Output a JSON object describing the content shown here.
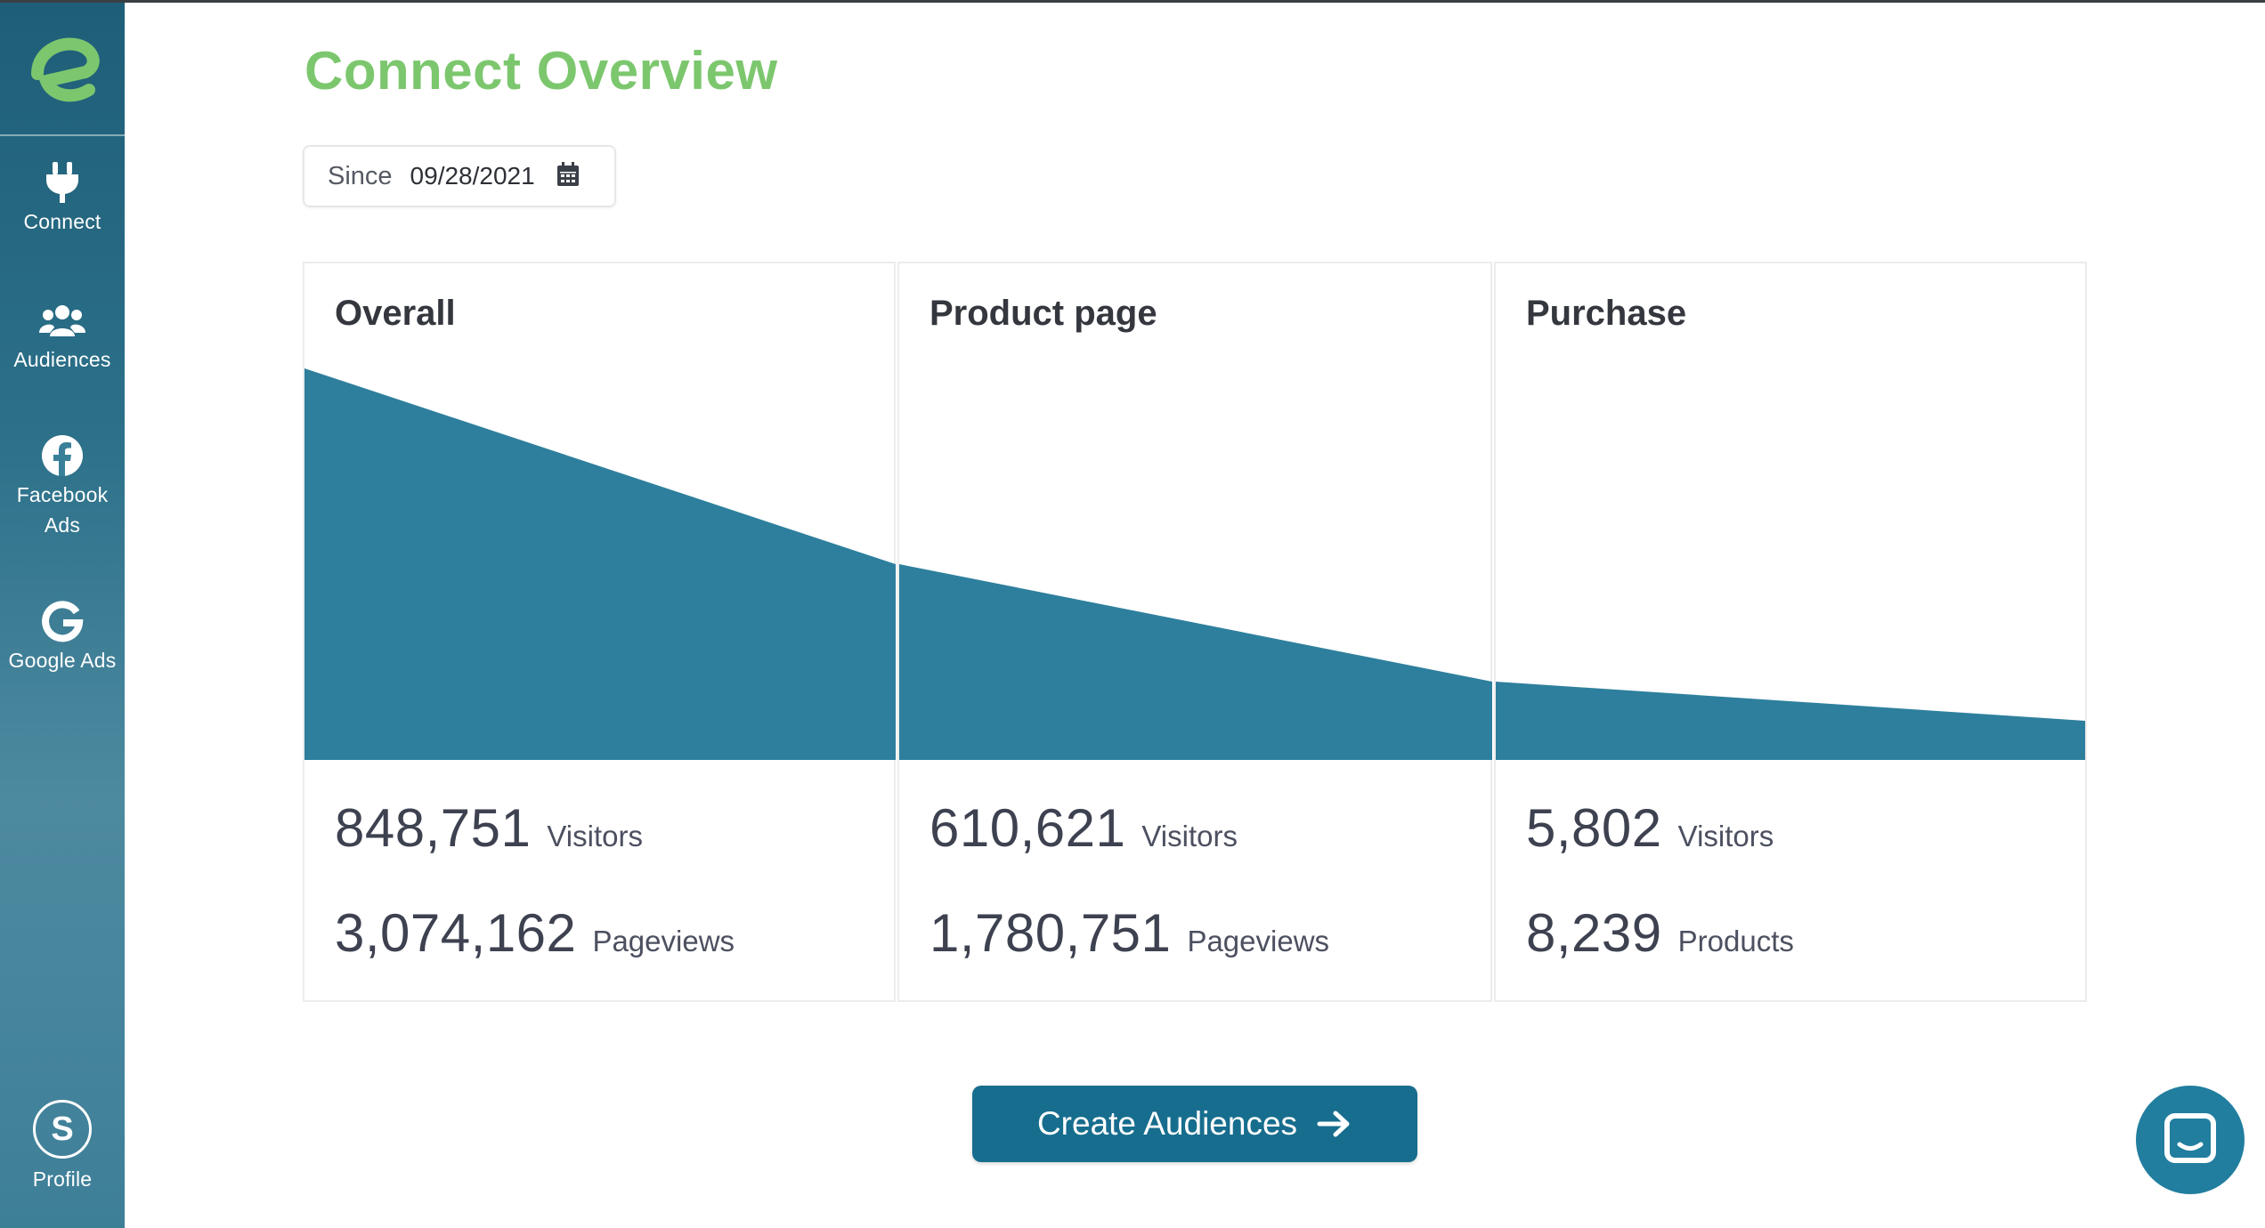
{
  "sidebar": {
    "logo_letter": "e",
    "items": [
      {
        "label": "Connect",
        "icon": "plug-icon"
      },
      {
        "label": "Audiences",
        "icon": "users-icon"
      },
      {
        "label": "Facebook Ads",
        "icon": "facebook-icon"
      },
      {
        "label": "Google Ads",
        "icon": "google-icon"
      }
    ],
    "profile": {
      "initial": "S",
      "label": "Profile"
    }
  },
  "header": {
    "title": "Connect Overview"
  },
  "filter": {
    "since_label": "Since",
    "since_value": "09/28/2021"
  },
  "cards": [
    {
      "title": "Overall",
      "stats": [
        {
          "value": "848,751",
          "unit": "Visitors"
        },
        {
          "value": "3,074,162",
          "unit": "Pageviews"
        }
      ]
    },
    {
      "title": "Product page",
      "stats": [
        {
          "value": "610,621",
          "unit": "Visitors"
        },
        {
          "value": "1,780,751",
          "unit": "Pageviews"
        }
      ]
    },
    {
      "title": "Purchase",
      "stats": [
        {
          "value": "5,802",
          "unit": "Visitors"
        },
        {
          "value": "8,239",
          "unit": "Products"
        }
      ]
    }
  ],
  "funnel_levels": {
    "overall_start": 1.0,
    "overall_end": 0.5,
    "product_end": 0.2,
    "purchase_end": 0.1
  },
  "cta": {
    "label": "Create Audiences"
  },
  "colors": {
    "accent_green": "#7cc76e",
    "funnel_blue": "#2e7f9d",
    "button_blue": "#176d8e",
    "sidebar_blue": "#2c7089"
  }
}
